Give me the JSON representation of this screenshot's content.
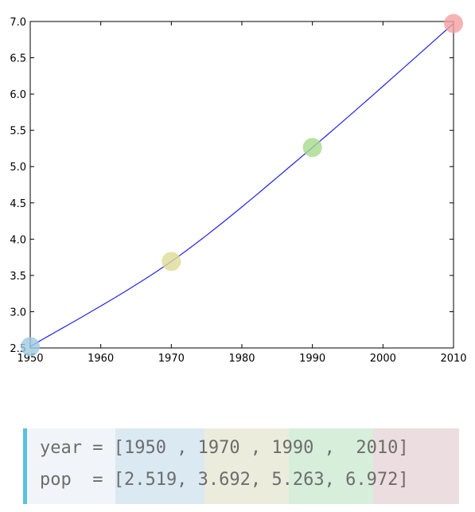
{
  "chart_data": {
    "type": "line",
    "title": "",
    "xlabel": "",
    "ylabel": "",
    "x": [
      1950,
      1970,
      1990,
      2010
    ],
    "y": [
      2.519,
      3.692,
      5.263,
      6.972
    ],
    "xlim": [
      1950,
      2010
    ],
    "ylim": [
      2.5,
      7.0
    ],
    "xticks": [
      "1950",
      "1960",
      "1970",
      "1980",
      "1990",
      "2000",
      "2010"
    ],
    "yticks": [
      "2.5",
      "3.0",
      "3.5",
      "4.0",
      "4.5",
      "5.0",
      "5.5",
      "6.0",
      "6.5",
      "7.0"
    ],
    "line_color": "#2222ee",
    "markers": [
      {
        "x": 1950,
        "y": 2.519,
        "color": "#9ecae1"
      },
      {
        "x": 1970,
        "y": 3.692,
        "color": "#dcdc96"
      },
      {
        "x": 1990,
        "y": 5.263,
        "color": "#a6d98c"
      },
      {
        "x": 2010,
        "y": 6.972,
        "color": "#f4a0a0"
      }
    ],
    "grid": false
  },
  "code": {
    "line1": {
      "p1": "year = [1950 ,",
      "p2": " 1970 ,",
      "p3": " 1990 ,",
      "p4": "  2010]"
    },
    "line2": {
      "p1": "pop  = [2.519,",
      "p2": " 3.692,",
      "p3": " 5.263,",
      "p4": " 6.972]"
    },
    "colors": {
      "h1": "#dbe9f2",
      "h2": "#ebecdc",
      "h3": "#d7eedb",
      "h4": "#ecdde1"
    }
  }
}
